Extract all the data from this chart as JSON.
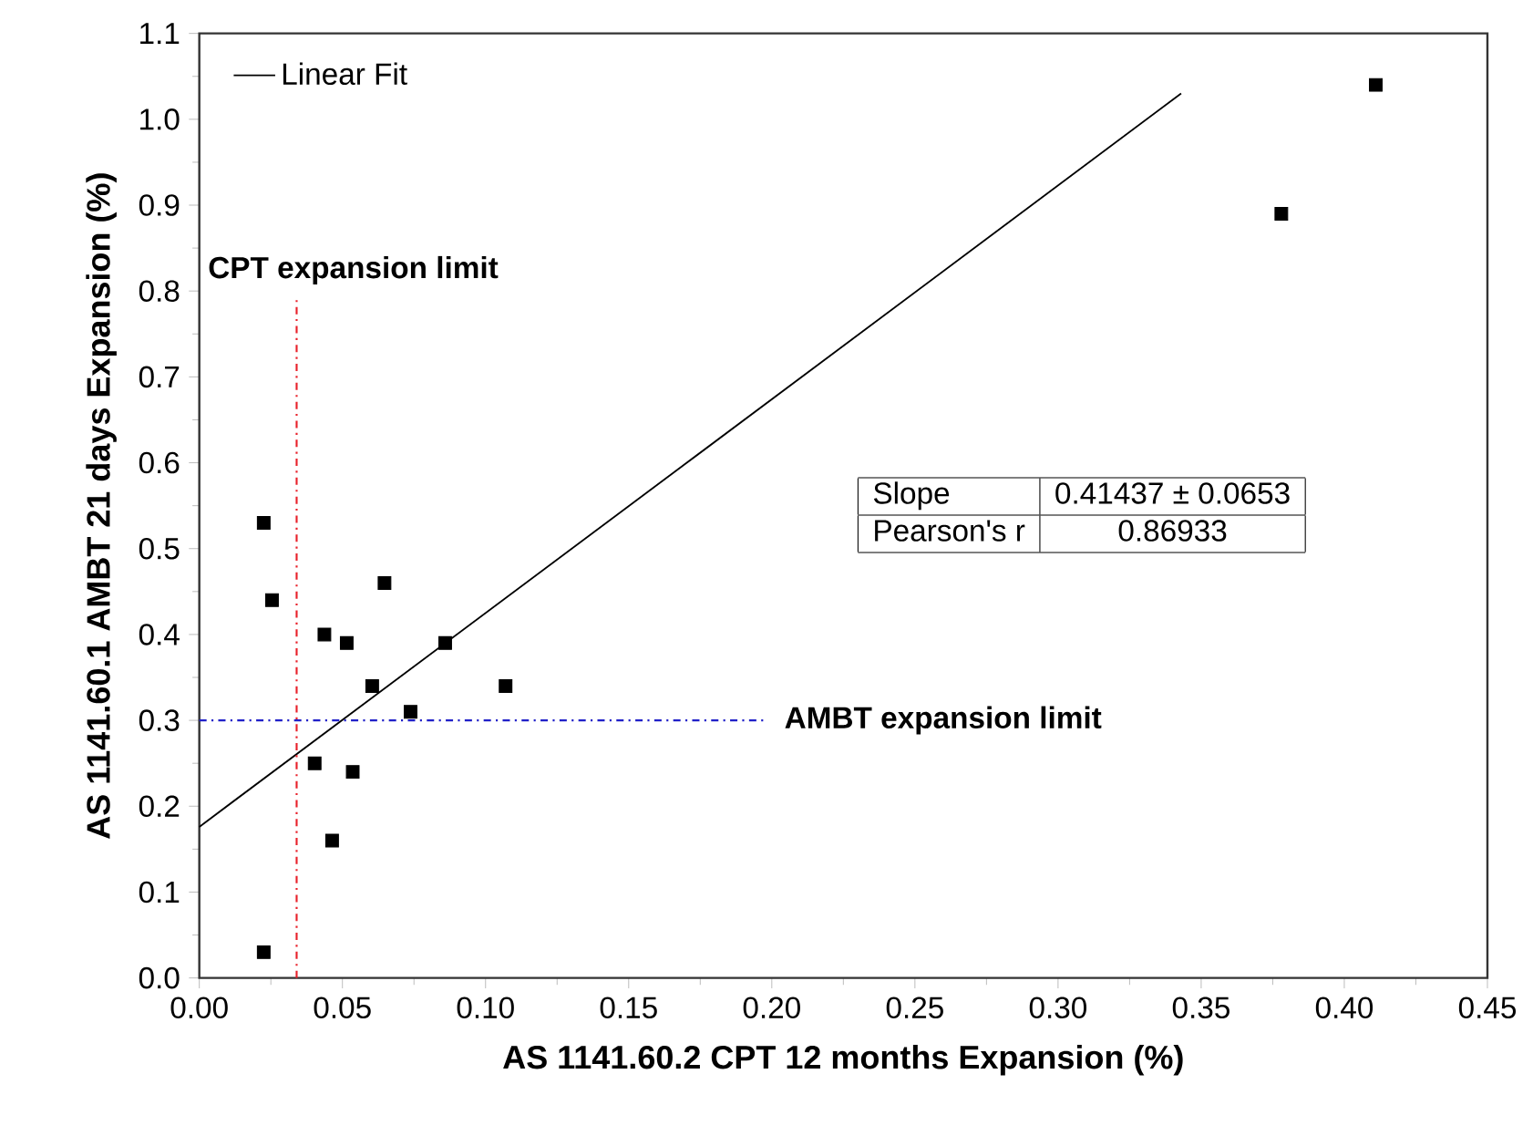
{
  "chart_data": {
    "type": "scatter",
    "xlabel": "AS 1141.60.2 CPT 12 months Expansion (%)",
    "ylabel": "AS 1141.60.1 AMBT 21 days Expansion (%)",
    "xlim": [
      0,
      0.45
    ],
    "ylim": [
      0,
      1.1
    ],
    "xticks": [
      {
        "value": 0,
        "label": "0.00"
      },
      0.05,
      {
        "value": 0.1,
        "label": "0.10"
      },
      0.15,
      {
        "value": 0.2,
        "label": "0.20"
      },
      0.25,
      {
        "value": 0.3,
        "label": "0.30"
      },
      0.35,
      {
        "value": 0.4,
        "label": "0.40"
      },
      0.45
    ],
    "yticks": [
      {
        "value": 0,
        "label": "0.0"
      },
      0.1,
      0.2,
      0.3,
      0.4,
      0.5,
      0.6,
      0.7,
      0.8,
      0.9,
      {
        "value": 1,
        "label": "1.0"
      },
      1.1
    ],
    "marker": "square",
    "legend": "top left",
    "grid": false,
    "series": [
      {
        "color": "#000000",
        "x": [
          0.0225,
          0.0254,
          0.0225,
          0.0437,
          0.0515,
          0.0647,
          0.0604,
          0.0738,
          0.0859,
          0.107,
          0.0403,
          0.0536,
          0.0464,
          0.378,
          0.411
        ],
        "values": [
          0.53,
          0.44,
          0.03,
          0.4,
          0.39,
          0.46,
          0.34,
          0.31,
          0.39,
          0.34,
          0.25,
          0.24,
          0.16,
          0.89,
          1.04
        ]
      },
      {
        "type": "line",
        "marker": "none",
        "name": "Linear Fit",
        "color": "#000000",
        "x": [
          0,
          0.343
        ],
        "values": [
          0.176,
          1.03
        ]
      }
    ],
    "ref_lines": [
      {
        "axis": "x",
        "value": 0.034,
        "label": "CPT expansion limit",
        "color": "#e8202a",
        "line_style": "dashdot"
      },
      {
        "axis": "y",
        "value": 0.3,
        "label": "AMBT expansion limit",
        "color": "#2020c8",
        "line_style": "dashdot"
      }
    ],
    "annotations": [
      "Slope",
      "0.41437 ± 0.0653",
      "Pearson's r",
      "0.86933"
    ]
  }
}
